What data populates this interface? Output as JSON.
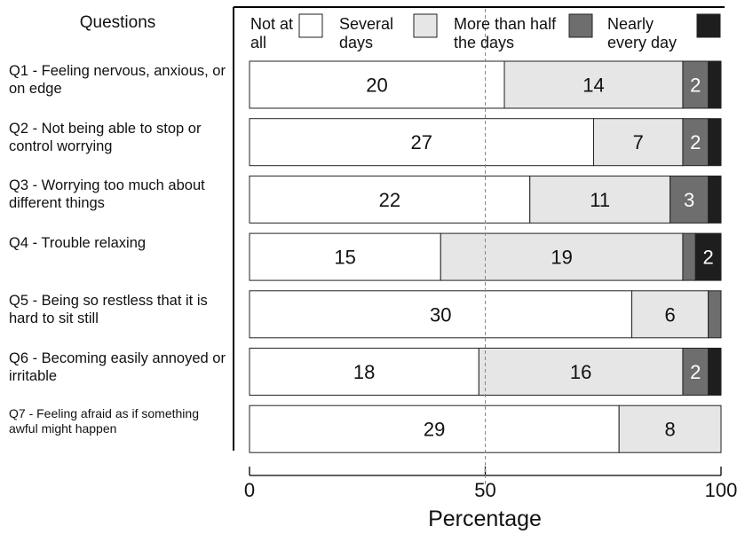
{
  "chart_data": {
    "type": "bar",
    "orientation": "horizontal",
    "stacked": true,
    "percent_stacked": true,
    "row_header": "Questions",
    "categories": [
      "Q1 - Feeling nervous, anxious, or on edge",
      "Q2 - Not being able to stop or control worrying",
      "Q3 - Worrying too much about different things",
      "Q4 - Trouble relaxing",
      "Q5 - Being so restless that it is hard to sit still",
      "Q6 - Becoming easily annoyed or irritable",
      "Q7 - Feeling afraid as if something awful might happen"
    ],
    "series": [
      {
        "name": "Not at all",
        "color": "#ffffff",
        "values": [
          20,
          27,
          22,
          15,
          30,
          18,
          29
        ]
      },
      {
        "name": "Several days",
        "color": "#e6e6e6",
        "values": [
          14,
          7,
          11,
          19,
          6,
          16,
          8
        ]
      },
      {
        "name": "More than half the days",
        "color": "#6e6e6e",
        "values": [
          2,
          2,
          3,
          1,
          1,
          2,
          0
        ]
      },
      {
        "name": "Nearly every day",
        "color": "#1e1e1e",
        "values": [
          1,
          1,
          1,
          2,
          0,
          1,
          0
        ]
      }
    ],
    "xlabel": "Percentage",
    "xlim": [
      0,
      100
    ],
    "xticks": [
      "0",
      "50",
      "100"
    ],
    "reference_line": 50,
    "legend_position": "top"
  }
}
